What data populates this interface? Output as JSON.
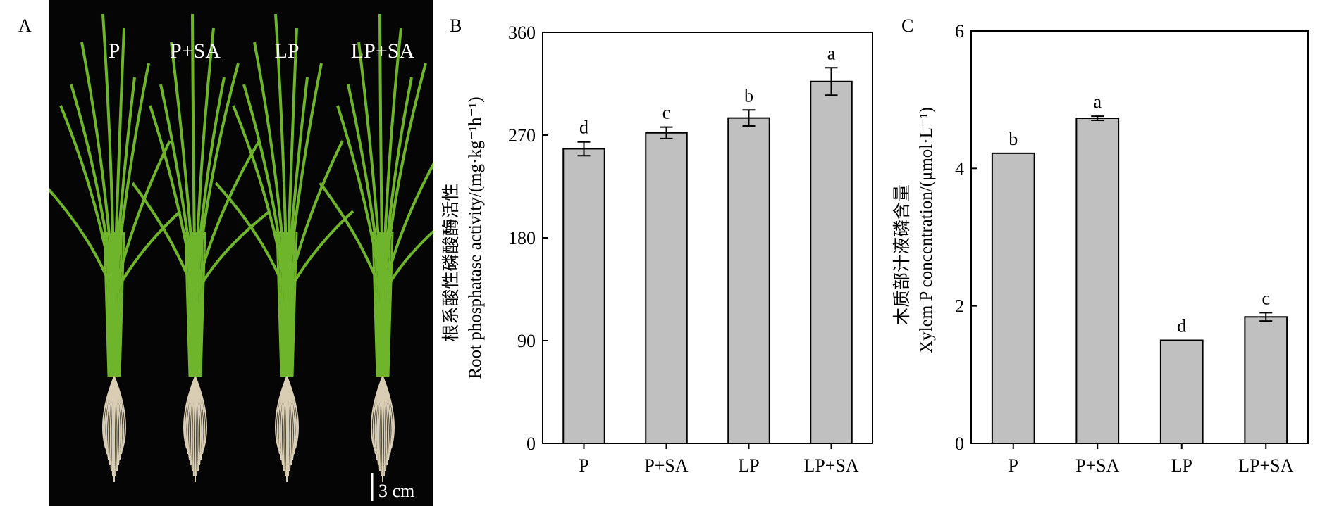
{
  "panels": {
    "a": {
      "letter": "A",
      "treatment_labels": [
        "P",
        "P+SA",
        "LP",
        "LP+SA"
      ],
      "scale_label": "3 cm"
    },
    "b": {
      "letter": "B"
    },
    "c": {
      "letter": "C"
    }
  },
  "colors": {
    "bar_fill": "#c0c0c0",
    "bar_stroke": "#000000",
    "photo_background": "#050505",
    "leaf_green": "#6fb52c",
    "root_color": "#d9cdb4"
  },
  "chart_data": [
    {
      "type": "bar",
      "panel": "B",
      "categories": [
        "P",
        "P+SA",
        "LP",
        "LP+SA"
      ],
      "values": [
        258,
        272,
        285,
        317
      ],
      "errors": [
        6,
        5,
        7,
        12
      ],
      "significance": [
        "d",
        "c",
        "b",
        "a"
      ],
      "ylabel_cn": "根系酸性磷酸酶活性",
      "ylabel_en": "Root phosphatase activity/(mg·kg⁻¹h⁻¹)",
      "ylim": [
        0,
        360
      ],
      "yticks": [
        0,
        90,
        180,
        270,
        360
      ],
      "grid": false
    },
    {
      "type": "bar",
      "panel": "C",
      "categories": [
        "P",
        "P+SA",
        "LP",
        "LP+SA"
      ],
      "values": [
        4.22,
        4.73,
        1.5,
        1.84
      ],
      "errors": [
        0.0,
        0.03,
        0.0,
        0.06
      ],
      "significance": [
        "b",
        "a",
        "d",
        "c"
      ],
      "ylabel_cn": "木质部汁液磷含量",
      "ylabel_en": "Xylem P concentration/(μmol·L⁻¹)",
      "ylim": [
        0,
        6
      ],
      "yticks": [
        0,
        2,
        4,
        6
      ],
      "grid": false
    }
  ]
}
